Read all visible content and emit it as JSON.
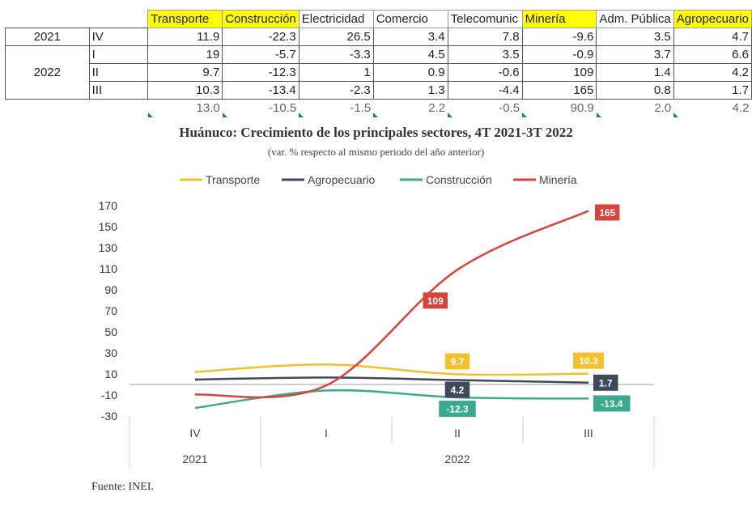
{
  "table": {
    "headers": [
      {
        "label": "Transporte",
        "highlight": true
      },
      {
        "label": "Construcción",
        "highlight": true
      },
      {
        "label": "Electricidad",
        "highlight": false
      },
      {
        "label": "Comercio",
        "highlight": false
      },
      {
        "label": "Telecomunic",
        "highlight": false
      },
      {
        "label": "Minería",
        "highlight": true
      },
      {
        "label": "Adm. Pública",
        "highlight": false
      },
      {
        "label": "Agropecuario",
        "highlight": true
      }
    ],
    "rows": [
      {
        "year": "2021",
        "quarter": "IV",
        "values": [
          "11.9",
          "-22.3",
          "26.5",
          "3.4",
          "7.8",
          "-9.6",
          "3.5",
          "4.7"
        ]
      },
      {
        "year": "2022",
        "quarter": "I",
        "values": [
          "19",
          "-5.7",
          "-3.3",
          "4.5",
          "3.5",
          "-0.9",
          "3.7",
          "6.6"
        ]
      },
      {
        "year": "",
        "quarter": "II",
        "values": [
          "9.7",
          "-12.3",
          "1",
          "0.9",
          "-0.6",
          "109",
          "1.4",
          "4.2"
        ]
      },
      {
        "year": "",
        "quarter": "III",
        "values": [
          "10.3",
          "-13.4",
          "-2.3",
          "1.3",
          "-4.4",
          "165",
          "0.8",
          "1.7"
        ]
      }
    ],
    "averages": [
      "13.0",
      "-10.5",
      "-1.5",
      "2.2",
      "-0.5",
      "90.9",
      "2.0",
      "4.2"
    ]
  },
  "chart_data": {
    "type": "line",
    "title": "Huánuco: Crecimiento de los principales sectores, 4T 2021-3T 2022",
    "subtitle": "(var. % respecto al mismo periodo del año anterior)",
    "categories": [
      "IV",
      "I",
      "II",
      "III"
    ],
    "year_groups": [
      {
        "label": "2021",
        "span": 1
      },
      {
        "label": "2022",
        "span": 3
      }
    ],
    "yticks": [
      170,
      150,
      130,
      110,
      90,
      70,
      50,
      30,
      10,
      -10,
      -30
    ],
    "ylim": [
      -30,
      170
    ],
    "legend_position": "top",
    "series": [
      {
        "name": "Transporte",
        "color": "#f3c12d",
        "values": [
          11.9,
          19,
          9.7,
          10.3
        ],
        "labels": [
          null,
          null,
          "9.7",
          "10.3"
        ],
        "label_pos": [
          null,
          null,
          "above",
          "above"
        ],
        "label_bg": "#f3c12d",
        "label_fg": "#ffffff"
      },
      {
        "name": "Agropecuario",
        "color": "#3e4a5c",
        "values": [
          4.7,
          6.6,
          4.2,
          1.7
        ],
        "labels": [
          null,
          null,
          "4.2",
          "1.7"
        ],
        "label_pos": [
          null,
          null,
          "below",
          "below"
        ],
        "label_bg": "#3e4a5c",
        "label_fg": "#ffffff"
      },
      {
        "name": "Construcción",
        "color": "#3aab8f",
        "values": [
          -22.3,
          -5.7,
          -12.3,
          -13.4
        ],
        "labels": [
          null,
          null,
          "-12.3",
          "-13.4"
        ],
        "label_pos": [
          null,
          null,
          "below",
          "right"
        ],
        "label_bg": "#3aab8f",
        "label_fg": "#ffffff"
      },
      {
        "name": "Minería",
        "color": "#d9443a",
        "values": [
          -9.6,
          -0.9,
          109,
          165
        ],
        "labels": [
          null,
          null,
          "109",
          "165"
        ],
        "label_pos": [
          null,
          null,
          "left",
          "right"
        ],
        "label_bg": "#d9443a",
        "label_fg": "#ffffff"
      }
    ]
  },
  "source": "Fuente: INEI."
}
